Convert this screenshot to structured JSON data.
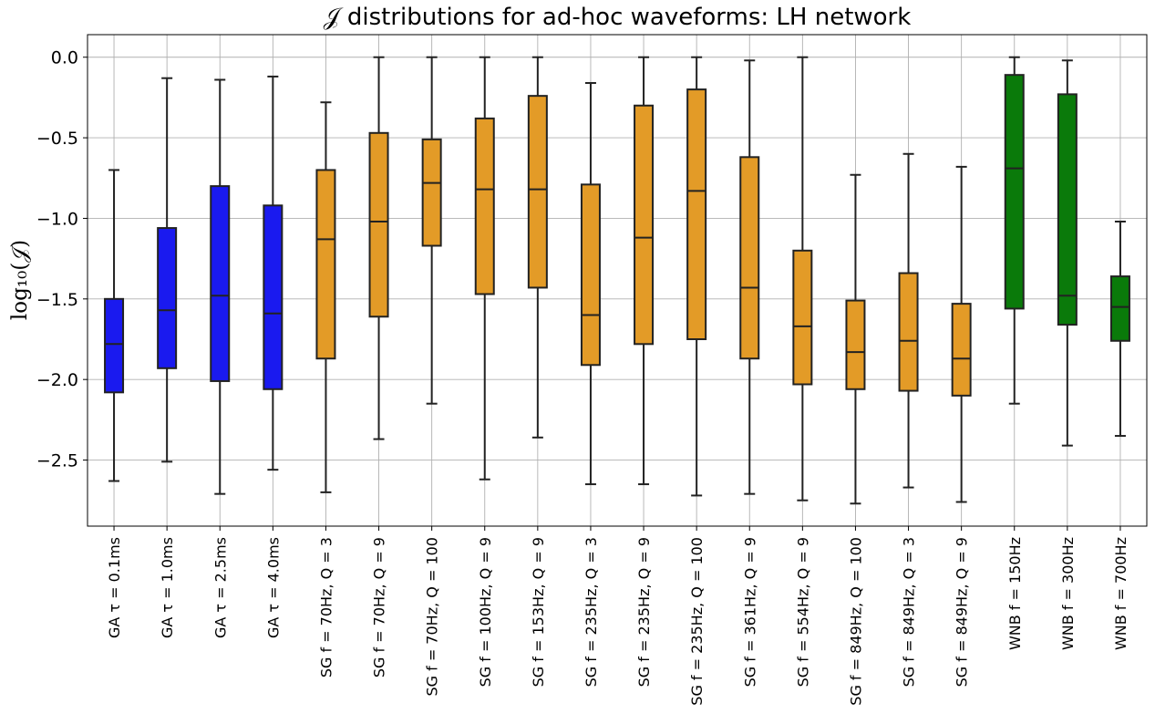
{
  "chart_data": {
    "type": "box",
    "title": "𝒥 distributions for ad-hoc waveforms: LH network",
    "xlabel": "",
    "ylabel": "log₁₀(𝒥)",
    "ylim": [
      -2.91,
      0.14
    ],
    "yticks": [
      0.0,
      -0.5,
      -1.0,
      -1.5,
      -2.0,
      -2.5
    ],
    "ytick_labels": [
      "0.0",
      "−0.5",
      "−1.0",
      "−1.5",
      "−2.0",
      "−2.5"
    ],
    "grid": true,
    "colors": {
      "GA": "#1a1aef",
      "SG": "#e39b27",
      "WNB": "#0a7a0a"
    },
    "boxes": [
      {
        "label": "GA τ = 0.1ms",
        "family": "GA",
        "whisker_low": -2.63,
        "q1": -2.08,
        "median": -1.78,
        "q3": -1.5,
        "whisker_high": -0.7
      },
      {
        "label": "GA τ = 1.0ms",
        "family": "GA",
        "whisker_low": -2.51,
        "q1": -1.93,
        "median": -1.57,
        "q3": -1.06,
        "whisker_high": -0.13
      },
      {
        "label": "GA τ = 2.5ms",
        "family": "GA",
        "whisker_low": -2.71,
        "q1": -2.01,
        "median": -1.48,
        "q3": -0.8,
        "whisker_high": -0.14
      },
      {
        "label": "GA τ = 4.0ms",
        "family": "GA",
        "whisker_low": -2.56,
        "q1": -2.06,
        "median": -1.59,
        "q3": -0.92,
        "whisker_high": -0.12
      },
      {
        "label": "SG f = 70Hz, Q = 3",
        "family": "SG",
        "whisker_low": -2.7,
        "q1": -1.87,
        "median": -1.13,
        "q3": -0.7,
        "whisker_high": -0.28
      },
      {
        "label": "SG f = 70Hz, Q = 9",
        "family": "SG",
        "whisker_low": -2.37,
        "q1": -1.61,
        "median": -1.02,
        "q3": -0.47,
        "whisker_high": 0.0
      },
      {
        "label": "SG f = 70Hz, Q = 100",
        "family": "SG",
        "whisker_low": -2.15,
        "q1": -1.17,
        "median": -0.78,
        "q3": -0.51,
        "whisker_high": 0.0
      },
      {
        "label": "SG f = 100Hz, Q = 9",
        "family": "SG",
        "whisker_low": -2.62,
        "q1": -1.47,
        "median": -0.82,
        "q3": -0.38,
        "whisker_high": 0.0
      },
      {
        "label": "SG f = 153Hz, Q = 9",
        "family": "SG",
        "whisker_low": -2.36,
        "q1": -1.43,
        "median": -0.82,
        "q3": -0.24,
        "whisker_high": 0.0
      },
      {
        "label": "SG f = 235Hz, Q = 3",
        "family": "SG",
        "whisker_low": -2.65,
        "q1": -1.91,
        "median": -1.6,
        "q3": -0.79,
        "whisker_high": -0.16
      },
      {
        "label": "SG f = 235Hz, Q = 9",
        "family": "SG",
        "whisker_low": -2.65,
        "q1": -1.78,
        "median": -1.12,
        "q3": -0.3,
        "whisker_high": 0.0
      },
      {
        "label": "SG f = 235Hz, Q = 100",
        "family": "SG",
        "whisker_low": -2.72,
        "q1": -1.75,
        "median": -0.83,
        "q3": -0.2,
        "whisker_high": 0.0
      },
      {
        "label": "SG f = 361Hz, Q = 9",
        "family": "SG",
        "whisker_low": -2.71,
        "q1": -1.87,
        "median": -1.43,
        "q3": -0.62,
        "whisker_high": -0.02
      },
      {
        "label": "SG f = 554Hz, Q = 9",
        "family": "SG",
        "whisker_low": -2.75,
        "q1": -2.03,
        "median": -1.67,
        "q3": -1.2,
        "whisker_high": 0.0
      },
      {
        "label": "SG f = 849Hz, Q = 100",
        "family": "SG",
        "whisker_low": -2.77,
        "q1": -2.06,
        "median": -1.83,
        "q3": -1.51,
        "whisker_high": -0.73
      },
      {
        "label": "SG f = 849Hz, Q = 3",
        "family": "SG",
        "whisker_low": -2.67,
        "q1": -2.07,
        "median": -1.76,
        "q3": -1.34,
        "whisker_high": -0.6
      },
      {
        "label": "SG f = 849Hz, Q = 9",
        "family": "SG",
        "whisker_low": -2.76,
        "q1": -2.1,
        "median": -1.87,
        "q3": -1.53,
        "whisker_high": -0.68
      },
      {
        "label": "WNB f = 150Hz",
        "family": "WNB",
        "whisker_low": -2.15,
        "q1": -1.56,
        "median": -0.69,
        "q3": -0.11,
        "whisker_high": 0.0
      },
      {
        "label": "WNB f = 300Hz",
        "family": "WNB",
        "whisker_low": -2.41,
        "q1": -1.66,
        "median": -1.48,
        "q3": -0.23,
        "whisker_high": -0.02
      },
      {
        "label": "WNB f = 700Hz",
        "family": "WNB",
        "whisker_low": -2.35,
        "q1": -1.76,
        "median": -1.55,
        "q3": -1.36,
        "whisker_high": -1.02
      }
    ]
  }
}
